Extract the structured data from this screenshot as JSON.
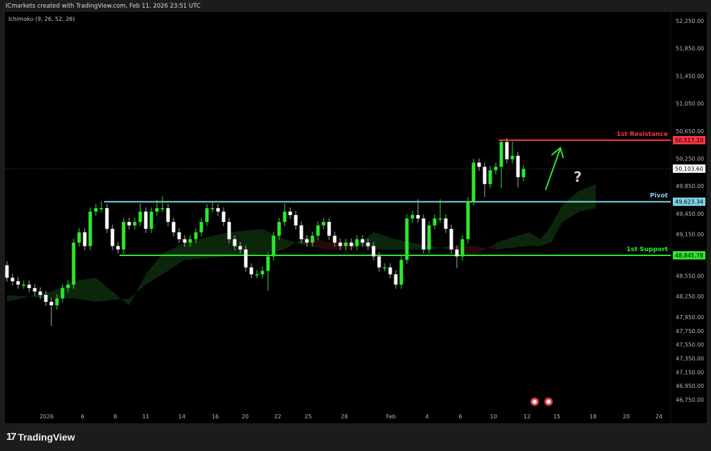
{
  "header": {
    "attribution": "ICmarkets created with TradingView.com, Feb 11, 2026 23:51 UTC"
  },
  "indicator": {
    "label": "Ichimoku (9, 26, 52, 26)"
  },
  "footer": {
    "brand": "TradingView",
    "logo_icon": "tradingview-logo-icon"
  },
  "chart_data": {
    "type": "candlestick",
    "colors": {
      "up": "#2ee62e",
      "down": "#ffffff",
      "resistance": "#f23645",
      "pivot": "#7fd3e6",
      "support": "#2ee62e",
      "cloud_bull": "#0d2a0d",
      "cloud_bear": "#2a0b0b",
      "arrow": "#2ee62e"
    },
    "y_ticks": [
      "52,250.00",
      "51,850.00",
      "51,450.00",
      "51,050.00",
      "50,650.00",
      "50,250.00",
      "49,850.00",
      "49,450.00",
      "49,150.00",
      "48,550.00",
      "48,250.00",
      "47,950.00",
      "47,750.00",
      "47,550.00",
      "47,350.00",
      "47,150.00",
      "46,950.00",
      "46,750.00"
    ],
    "y_tick_values": [
      52250,
      51850,
      51450,
      51050,
      50650,
      50250,
      49850,
      49450,
      49150,
      48550,
      48250,
      47950,
      47750,
      47550,
      47350,
      47150,
      46950,
      46750
    ],
    "x_ticks": [
      "2026",
      "6",
      "8",
      "11",
      "14",
      "16",
      "20",
      "22",
      "25",
      "28",
      "Feb",
      "4",
      "6",
      "10",
      "12",
      "15",
      "18",
      "20",
      "24"
    ],
    "levels": [
      {
        "name": "1st Resistance",
        "value": 50517.1,
        "label": "50,517.10",
        "color": "#f23645"
      },
      {
        "name": "Pivot",
        "value": 49623.34,
        "label": "49,623.34",
        "color": "#7fd3e6"
      },
      {
        "name": "1st Support",
        "value": 48845.78,
        "label": "48,845.78",
        "color": "#2ee62e"
      }
    ],
    "last_price": {
      "value": 50103.6,
      "label": "50,103.60"
    },
    "annotation": {
      "question_mark": "?",
      "arrow": "up"
    },
    "candles_ohlc": [
      [
        48700,
        48760,
        48460,
        48520
      ],
      [
        48520,
        48580,
        48410,
        48470
      ],
      [
        48470,
        48530,
        48360,
        48420
      ],
      [
        48420,
        48480,
        48360,
        48420
      ],
      [
        48420,
        48480,
        48310,
        48370
      ],
      [
        48370,
        48430,
        48260,
        48320
      ],
      [
        48320,
        48380,
        48210,
        48270
      ],
      [
        48270,
        48330,
        48110,
        48170
      ],
      [
        48170,
        48230,
        47820,
        48120
      ],
      [
        48120,
        48280,
        48060,
        48220
      ],
      [
        48220,
        48430,
        48160,
        48370
      ],
      [
        48370,
        48480,
        48310,
        48420
      ],
      [
        48420,
        49090,
        48360,
        49030
      ],
      [
        49030,
        49240,
        48970,
        49180
      ],
      [
        49180,
        49240,
        48920,
        48980
      ],
      [
        48980,
        49540,
        48920,
        49480
      ],
      [
        49480,
        49590,
        49420,
        49530
      ],
      [
        49530,
        49630,
        49470,
        49530
      ],
      [
        49530,
        49590,
        49170,
        49230
      ],
      [
        49230,
        49290,
        48920,
        48980
      ],
      [
        48980,
        49040,
        48870,
        48930
      ],
      [
        48930,
        49390,
        48870,
        49330
      ],
      [
        49330,
        49390,
        49220,
        49280
      ],
      [
        49280,
        49390,
        49220,
        49330
      ],
      [
        49330,
        49600,
        49270,
        49480
      ],
      [
        49480,
        49540,
        49170,
        49230
      ],
      [
        49230,
        49540,
        49170,
        49480
      ],
      [
        49480,
        49650,
        49420,
        49530
      ],
      [
        49530,
        49700,
        49470,
        49530
      ],
      [
        49530,
        49590,
        49270,
        49330
      ],
      [
        49330,
        49390,
        49120,
        49180
      ],
      [
        49180,
        49240,
        49020,
        49080
      ],
      [
        49080,
        49140,
        48970,
        49030
      ],
      [
        49030,
        49140,
        48970,
        49080
      ],
      [
        49080,
        49240,
        49020,
        49180
      ],
      [
        49180,
        49390,
        49120,
        49330
      ],
      [
        49330,
        49590,
        49270,
        49530
      ],
      [
        49530,
        49630,
        49470,
        49530
      ],
      [
        49530,
        49590,
        49420,
        49480
      ],
      [
        49480,
        49540,
        49270,
        49330
      ],
      [
        49330,
        49390,
        49020,
        49080
      ],
      [
        49080,
        49140,
        48920,
        48980
      ],
      [
        48980,
        49040,
        48870,
        48930
      ],
      [
        48930,
        48990,
        48610,
        48670
      ],
      [
        48670,
        48730,
        48510,
        48570
      ],
      [
        48570,
        48630,
        48510,
        48570
      ],
      [
        48570,
        48680,
        48510,
        48620
      ],
      [
        48620,
        48890,
        48330,
        48830
      ],
      [
        48830,
        49190,
        48770,
        49130
      ],
      [
        49130,
        49390,
        49070,
        49330
      ],
      [
        49330,
        49600,
        49270,
        49480
      ],
      [
        49480,
        49540,
        49370,
        49430
      ],
      [
        49430,
        49490,
        49220,
        49280
      ],
      [
        49280,
        49340,
        49020,
        49080
      ],
      [
        49080,
        49140,
        48970,
        49030
      ],
      [
        49030,
        49190,
        48970,
        49130
      ],
      [
        49130,
        49340,
        49070,
        49280
      ],
      [
        49280,
        49390,
        49220,
        49330
      ],
      [
        49330,
        49390,
        49070,
        49130
      ],
      [
        49130,
        49190,
        48970,
        49030
      ],
      [
        49030,
        49090,
        48920,
        48980
      ],
      [
        48980,
        49090,
        48920,
        49030
      ],
      [
        49030,
        49090,
        48920,
        48980
      ],
      [
        48980,
        49140,
        48920,
        49080
      ],
      [
        49080,
        49140,
        48970,
        49030
      ],
      [
        49030,
        49090,
        48920,
        48980
      ],
      [
        48980,
        49040,
        48770,
        48830
      ],
      [
        48830,
        48890,
        48610,
        48670
      ],
      [
        48670,
        48730,
        48610,
        48670
      ],
      [
        48670,
        48730,
        48510,
        48570
      ],
      [
        48570,
        48630,
        48360,
        48420
      ],
      [
        48420,
        48840,
        48360,
        48780
      ],
      [
        48780,
        49440,
        48720,
        49380
      ],
      [
        49380,
        49490,
        49320,
        49430
      ],
      [
        49430,
        49660,
        49320,
        49380
      ],
      [
        49380,
        49440,
        48870,
        48930
      ],
      [
        48930,
        49340,
        48870,
        49280
      ],
      [
        49280,
        49440,
        49220,
        49380
      ],
      [
        49380,
        49660,
        49320,
        49380
      ],
      [
        49380,
        49440,
        49170,
        49230
      ],
      [
        49230,
        49290,
        48870,
        48930
      ],
      [
        48930,
        48990,
        48660,
        48830
      ],
      [
        48830,
        49140,
        48770,
        49080
      ],
      [
        49080,
        49690,
        49020,
        49630
      ],
      [
        49630,
        50250,
        49570,
        50190
      ],
      [
        50190,
        50250,
        50070,
        50130
      ],
      [
        50130,
        50190,
        49690,
        49880
      ],
      [
        49880,
        50140,
        49820,
        50080
      ],
      [
        50080,
        50190,
        50020,
        50130
      ],
      [
        50130,
        50517,
        49820,
        50490
      ],
      [
        50490,
        50550,
        50180,
        50240
      ],
      [
        50240,
        50500,
        50180,
        50290
      ],
      [
        50290,
        50350,
        49830,
        49980
      ],
      [
        49980,
        50160,
        49920,
        50100
      ]
    ],
    "ichimoku_cloud": [
      {
        "bar": 0,
        "span_a": 48170,
        "span_b": 48270
      },
      {
        "bar": 8,
        "span_a": 48320,
        "span_b": 48220
      },
      {
        "bar": 12,
        "span_a": 48470,
        "span_b": 48220
      },
      {
        "bar": 16,
        "span_a": 48520,
        "span_b": 48170
      },
      {
        "bar": 22,
        "span_a": 48120,
        "span_b": 48220
      },
      {
        "bar": 25,
        "span_a": 48570,
        "span_b": 48420
      },
      {
        "bar": 28,
        "span_a": 48870,
        "span_b": 48570
      },
      {
        "bar": 32,
        "span_a": 49030,
        "span_b": 48780
      },
      {
        "bar": 40,
        "span_a": 49180,
        "span_b": 48830
      },
      {
        "bar": 46,
        "span_a": 49230,
        "span_b": 48870
      },
      {
        "bar": 50,
        "span_a": 49080,
        "span_b": 48930
      },
      {
        "bar": 54,
        "span_a": 48980,
        "span_b": 49130
      },
      {
        "bar": 58,
        "span_a": 48930,
        "span_b": 49030
      },
      {
        "bar": 62,
        "span_a": 48930,
        "span_b": 49030
      },
      {
        "bar": 66,
        "span_a": 49180,
        "span_b": 48930
      },
      {
        "bar": 70,
        "span_a": 49080,
        "span_b": 48930
      },
      {
        "bar": 76,
        "span_a": 48980,
        "span_b": 48930
      },
      {
        "bar": 80,
        "span_a": 48930,
        "span_b": 48980
      },
      {
        "bar": 84,
        "span_a": 48830,
        "span_b": 48980
      },
      {
        "bar": 88,
        "span_a": 49030,
        "span_b": 48930
      },
      {
        "bar": 94,
        "span_a": 49180,
        "span_b": 48980
      },
      {
        "bar": 96,
        "span_a": 49080,
        "span_b": 48980
      },
      {
        "bar": 98,
        "span_a": 49280,
        "span_b": 49030
      },
      {
        "bar": 100,
        "span_a": 49580,
        "span_b": 49330
      },
      {
        "bar": 103,
        "span_a": 49780,
        "span_b": 49480
      },
      {
        "bar": 106,
        "span_a": 49880,
        "span_b": 49530
      }
    ],
    "events": [
      {
        "icon": "us-flag-icon"
      },
      {
        "icon": "us-flag-icon"
      }
    ]
  }
}
